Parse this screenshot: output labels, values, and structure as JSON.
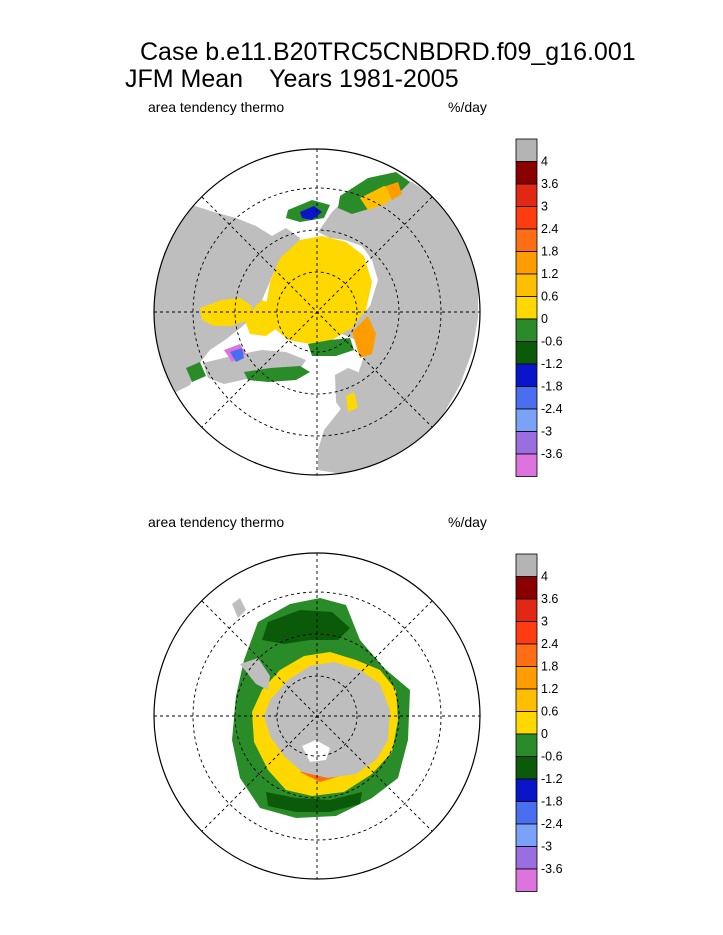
{
  "title": {
    "case": "Case b.e11.B20TRC5CNBDRD.f09_g16.001",
    "season": "JFM Mean",
    "years": "Years 1981-2005"
  },
  "colors": {
    "land": "#bebebe",
    "bins": [
      "#dd74dd",
      "#9a6ee0",
      "#7aa2f7",
      "#4a6ef0",
      "#0a14c8",
      "#0a5a0a",
      "#2a8c28",
      "#ffd800",
      "#ffbf00",
      "#ff9c00",
      "#ff6e14",
      "#ff3c10",
      "#e02814",
      "#8a0000"
    ],
    "na": "#b4b4b4"
  },
  "chart_data": [
    {
      "type": "heatmap",
      "projection": "polar-stereographic",
      "hemisphere": "north",
      "title": "area tendency thermo",
      "units": "%/day",
      "colorbar_ticks": [
        "4",
        "3.6",
        "3",
        "2.4",
        "1.8",
        "1.2",
        "0.6",
        "0",
        "-0.6",
        "-1.2",
        "-1.8",
        "-2.4",
        "-3",
        "-3.6"
      ]
    },
    {
      "type": "heatmap",
      "projection": "polar-stereographic",
      "hemisphere": "south",
      "title": "area tendency thermo",
      "units": "%/day",
      "colorbar_ticks": [
        "4",
        "3.6",
        "3",
        "2.4",
        "1.8",
        "1.2",
        "0.6",
        "0",
        "-0.6",
        "-1.2",
        "-1.8",
        "-2.4",
        "-3",
        "-3.6"
      ]
    }
  ]
}
